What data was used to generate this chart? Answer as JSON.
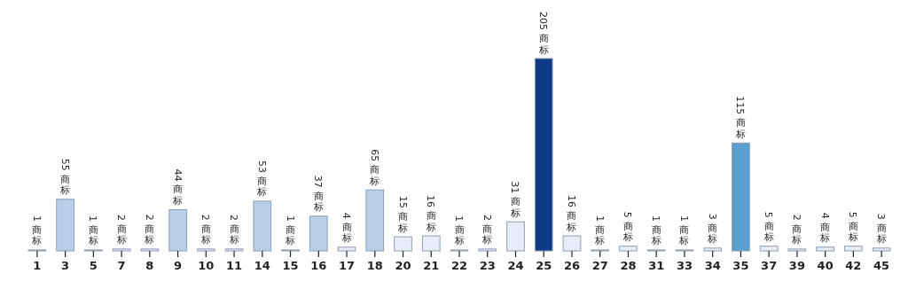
{
  "chart_data": {
    "type": "bar",
    "categories": [
      "1",
      "3",
      "5",
      "7",
      "8",
      "9",
      "10",
      "11",
      "14",
      "15",
      "16",
      "17",
      "18",
      "20",
      "21",
      "22",
      "23",
      "24",
      "25",
      "26",
      "27",
      "28",
      "31",
      "33",
      "34",
      "35",
      "37",
      "39",
      "40",
      "42",
      "45"
    ],
    "values": [
      1,
      55,
      1,
      2,
      2,
      44,
      2,
      2,
      53,
      1,
      37,
      4,
      65,
      15,
      16,
      1,
      2,
      31,
      205,
      16,
      1,
      5,
      1,
      1,
      3,
      115,
      5,
      2,
      4,
      5,
      3
    ],
    "colors": [
      "#b8cfea",
      "#b8cfea",
      "#b8cfea",
      "#e8ecfa",
      "#e8ecfa",
      "#b8cfea",
      "#e8ecfa",
      "#e8ecfa",
      "#b8cfea",
      "#b8cfea",
      "#b8cfea",
      "#e8ecfa",
      "#b8cfea",
      "#e8ecfa",
      "#e8ecfa",
      "#e8ecfa",
      "#e8ecfa",
      "#e8ecfa",
      "#0d3b87",
      "#e8ecfa",
      "#e8ecfa",
      "#e8ecfa",
      "#e8ecfa",
      "#e8ecfa",
      "#e8ecfa",
      "#5a9fcf",
      "#e8ecfa",
      "#e8ecfa",
      "#e8ecfa",
      "#e8ecfa",
      "#e8ecfa"
    ],
    "value_labels": [
      "1 商标",
      "55 商标",
      "1 商标",
      "2 商标",
      "2 商标",
      "44 商标",
      "2 商标",
      "2 商标",
      "53 商标",
      "1 商标",
      "37 商标",
      "4 商标",
      "65 商标",
      "15 商标",
      "16 商标",
      "1 商标",
      "2 商标",
      "31 商标",
      "205 商标",
      "16 商标",
      "1 商标",
      "5 商标",
      "1 商标",
      "1 商标",
      "3 商标",
      "115 商标",
      "5 商标",
      "2 商标",
      "4 商标",
      "5 商标",
      "3 商标"
    ]
  }
}
